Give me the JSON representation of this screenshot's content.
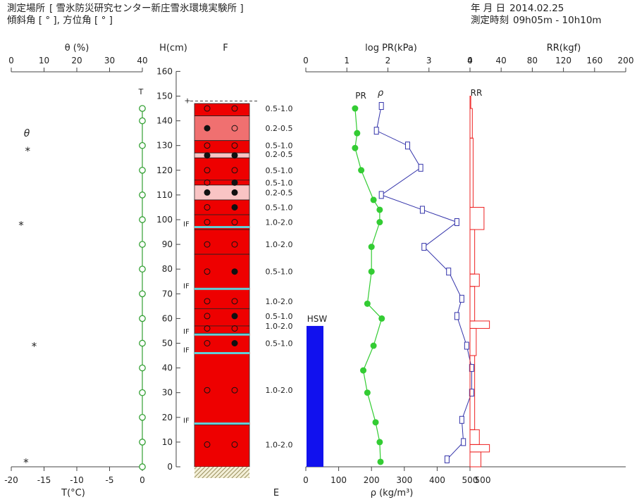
{
  "header": {
    "site_label": "測定場所",
    "site_value": "[ 雪氷防災研究センター新庄雪氷環境実験所 ]",
    "angle_label": "傾斜角 [ ° ], 方位角 [ ° ]",
    "date_label": "年 月 日",
    "date_value": "2014.02.25",
    "time_label": "測定時刻",
    "time_value": "09h05m - 10h10m"
  },
  "chart_data": [
    {
      "type": "scatter",
      "title": "θ (%) / T(°C)",
      "top_axis": {
        "label": "θ (%)",
        "ticks": [
          "0",
          "10",
          "20",
          "30",
          "40"
        ],
        "range": [
          0,
          40
        ]
      },
      "bottom_axis": {
        "label": "T(°C)",
        "ticks": [
          "-20",
          "-15",
          "-10",
          "-5",
          "0"
        ],
        "range": [
          -20,
          0
        ]
      },
      "theta_label": "θ",
      "theta_marker": "*",
      "theta_points": [
        {
          "h": 128,
          "theta": 5
        },
        {
          "h": 98,
          "theta": 3
        },
        {
          "h": 49,
          "theta": 7
        },
        {
          "h": 2,
          "theta": 4.5
        }
      ],
      "temp_label": "T",
      "temp_points": [
        {
          "h": 145,
          "t": 0
        },
        {
          "h": 140,
          "t": 0
        },
        {
          "h": 130,
          "t": 0
        },
        {
          "h": 120,
          "t": 0
        },
        {
          "h": 110,
          "t": 0
        },
        {
          "h": 100,
          "t": 0
        },
        {
          "h": 90,
          "t": 0
        },
        {
          "h": 80,
          "t": 0
        },
        {
          "h": 70,
          "t": 0
        },
        {
          "h": 60,
          "t": 0
        },
        {
          "h": 50,
          "t": 0
        },
        {
          "h": 40,
          "t": 0
        },
        {
          "h": 30,
          "t": 0
        },
        {
          "h": 20,
          "t": 0
        },
        {
          "h": 10,
          "t": 0
        },
        {
          "h": 0,
          "t": 0
        }
      ]
    },
    {
      "type": "table",
      "title": "H(cm) / F",
      "h_axis": {
        "label": "H(cm)",
        "ticks": [
          "0",
          "10",
          "20",
          "30",
          "40",
          "50",
          "60",
          "70",
          "80",
          "90",
          "100",
          "110",
          "120",
          "130",
          "140",
          "150",
          "160"
        ],
        "range": [
          0,
          160
        ]
      },
      "f_label": "F",
      "e_label": "E",
      "snow_surface_h": 148,
      "surface_mark": "+",
      "layers": [
        {
          "top": 147,
          "bottom": 142,
          "color": "#ee0000",
          "f": [
            "○",
            "○"
          ]
        },
        {
          "top": 142,
          "bottom": 132,
          "color": "#f07070",
          "f": [
            "●",
            "○"
          ]
        },
        {
          "top": 132,
          "bottom": 127,
          "color": "#ee0000",
          "f": [
            "○",
            "○"
          ]
        },
        {
          "top": 127,
          "bottom": 125,
          "color": "#f9c4c4",
          "f": [
            "●",
            "●"
          ]
        },
        {
          "top": 125,
          "bottom": 116,
          "color": "#ee0000",
          "f": [
            "○",
            "○"
          ]
        },
        {
          "top": 116,
          "bottom": 114,
          "color": "#ee0000",
          "f": [
            "○",
            "●"
          ]
        },
        {
          "top": 114,
          "bottom": 108,
          "color": "#f9c4c4",
          "f": [
            "●",
            "●"
          ]
        },
        {
          "top": 108,
          "bottom": 102,
          "color": "#ee0000",
          "f": [
            "○",
            "●"
          ]
        },
        {
          "top": 102,
          "bottom": 96,
          "color": "#ee0000",
          "f": [
            "○",
            "○"
          ]
        },
        {
          "top": 96,
          "bottom": 86,
          "color": "#ee0000",
          "f": [
            "○",
            "○"
          ]
        },
        {
          "top": 86,
          "bottom": 72,
          "color": "#ee0000",
          "f": [
            "○",
            "●"
          ]
        },
        {
          "top": 72,
          "bottom": 64,
          "color": "#ee0000",
          "f": [
            "○",
            "○"
          ]
        },
        {
          "top": 64,
          "bottom": 57,
          "color": "#ee0000",
          "f": [
            "○",
            "●"
          ]
        },
        {
          "top": 57,
          "bottom": 54,
          "color": "#ee0000",
          "f": [
            "○",
            "○"
          ]
        },
        {
          "top": 54,
          "bottom": 46,
          "color": "#ee0000",
          "f": [
            "○",
            "●"
          ]
        },
        {
          "top": 46,
          "bottom": 17,
          "color": "#ee0000",
          "f": [
            "○",
            "○"
          ]
        },
        {
          "top": 17,
          "bottom": 0,
          "color": "#ee0000",
          "f": [
            "○",
            "○"
          ]
        }
      ],
      "glyph_rows": [
        {
          "h": 145,
          "f": [
            "○",
            "○"
          ]
        },
        {
          "h": 137,
          "f": [
            "●",
            "○"
          ]
        },
        {
          "h": 130,
          "f": [
            "○",
            "○"
          ]
        },
        {
          "h": 126,
          "f": [
            "●",
            "●"
          ]
        },
        {
          "h": 120,
          "f": [
            "○",
            "○"
          ]
        },
        {
          "h": 115,
          "f": [
            "○",
            "●"
          ]
        },
        {
          "h": 111,
          "f": [
            "●",
            "●"
          ]
        },
        {
          "h": 105,
          "f": [
            "○",
            "●"
          ]
        },
        {
          "h": 99,
          "f": [
            "○",
            "○"
          ]
        },
        {
          "h": 90,
          "f": [
            "○",
            "○"
          ]
        },
        {
          "h": 79,
          "f": [
            "○",
            "●"
          ]
        },
        {
          "h": 67,
          "f": [
            "○",
            "○"
          ]
        },
        {
          "h": 61,
          "f": [
            "○",
            "●"
          ]
        },
        {
          "h": 56,
          "f": [
            "○",
            "○"
          ]
        },
        {
          "h": 50,
          "f": [
            "○",
            "●"
          ]
        },
        {
          "h": 31,
          "f": [
            "○",
            "○"
          ]
        },
        {
          "h": 9,
          "f": [
            "○",
            "○"
          ]
        }
      ],
      "ice_layers": [
        {
          "h": 97,
          "label": "IF"
        },
        {
          "h": 72,
          "label": "IF"
        },
        {
          "h": 53.5,
          "label": "IF"
        },
        {
          "h": 46,
          "label": "IF"
        },
        {
          "h": 17.5,
          "label": "IF"
        }
      ],
      "grain_sizes": [
        {
          "h": 145,
          "text": "0.5-1.0"
        },
        {
          "h": 137,
          "text": "0.2-0.5"
        },
        {
          "h": 130,
          "text": "0.5-1.0"
        },
        {
          "h": 126.5,
          "text": "0.2-0.5"
        },
        {
          "h": 120,
          "text": "0.5-1.0"
        },
        {
          "h": 115,
          "text": "0.5-1.0"
        },
        {
          "h": 111,
          "text": "0.2-0.5"
        },
        {
          "h": 105,
          "text": "0.5-1.0"
        },
        {
          "h": 99,
          "text": "1.0-2.0"
        },
        {
          "h": 90,
          "text": "1.0-2.0"
        },
        {
          "h": 79,
          "text": "0.5-1.0"
        },
        {
          "h": 67,
          "text": "1.0-2.0"
        },
        {
          "h": 61,
          "text": "0.5-1.0"
        },
        {
          "h": 57,
          "text": "1.0-2.0"
        },
        {
          "h": 50,
          "text": "0.5-1.0"
        },
        {
          "h": 31,
          "text": "1.0-2.0"
        },
        {
          "h": 9,
          "text": "1.0-2.0"
        }
      ]
    },
    {
      "type": "line",
      "title": "log PR(kPa) / ρ (kg/m³)",
      "top_axis": {
        "label": "log PR(kPa)",
        "ticks": [
          "0",
          "1",
          "2",
          "3",
          "4"
        ],
        "range": [
          0,
          4
        ]
      },
      "bottom_axis": {
        "label": "ρ (kg/m³)",
        "ticks": [
          "0",
          "100",
          "200",
          "300",
          "400",
          "500"
        ],
        "range": [
          0,
          500
        ]
      },
      "series": [
        {
          "name": "PR",
          "color": "#33cc33",
          "points": [
            {
              "h": 145,
              "log_pr": 1.2
            },
            {
              "h": 135,
              "log_pr": 1.25
            },
            {
              "h": 129,
              "log_pr": 1.2
            },
            {
              "h": 120,
              "log_pr": 1.35
            },
            {
              "h": 108,
              "log_pr": 1.65
            },
            {
              "h": 104,
              "log_pr": 1.8
            },
            {
              "h": 99,
              "log_pr": 1.8
            },
            {
              "h": 89,
              "log_pr": 1.6
            },
            {
              "h": 79,
              "log_pr": 1.6
            },
            {
              "h": 66,
              "log_pr": 1.5
            },
            {
              "h": 60,
              "log_pr": 1.85
            },
            {
              "h": 49,
              "log_pr": 1.65
            },
            {
              "h": 39,
              "log_pr": 1.4
            },
            {
              "h": 30,
              "log_pr": 1.5
            },
            {
              "h": 18,
              "log_pr": 1.7
            },
            {
              "h": 10,
              "log_pr": 1.8
            },
            {
              "h": 2,
              "log_pr": 1.82
            }
          ]
        },
        {
          "name": "ρ",
          "color": "#3333aa",
          "points": [
            {
              "h": 146,
              "rho": 230
            },
            {
              "h": 136,
              "rho": 215
            },
            {
              "h": 130,
              "rho": 310
            },
            {
              "h": 121,
              "rho": 350
            },
            {
              "h": 110,
              "rho": 230
            },
            {
              "h": 104,
              "rho": 355
            },
            {
              "h": 99,
              "rho": 460
            },
            {
              "h": 89,
              "rho": 360
            },
            {
              "h": 79,
              "rho": 435
            },
            {
              "h": 68,
              "rho": 475
            },
            {
              "h": 61,
              "rho": 460
            },
            {
              "h": 49,
              "rho": 490
            },
            {
              "h": 40,
              "rho": 505
            },
            {
              "h": 30,
              "rho": 505
            },
            {
              "h": 19,
              "rho": 475
            },
            {
              "h": 10,
              "rho": 480
            },
            {
              "h": 3,
              "rho": 430
            }
          ]
        }
      ],
      "series_labels": {
        "pr": "PR",
        "rho": "ρ"
      },
      "hsw": {
        "label": "HSW",
        "value": 50,
        "color": "#1111ee"
      }
    },
    {
      "type": "bar",
      "title": "RR(kgf)",
      "top_axis": {
        "label": "RR(kgf)",
        "ticks": [
          "0",
          "40",
          "80",
          "120",
          "160",
          "200"
        ],
        "range": [
          0,
          200
        ]
      },
      "label": "RR",
      "color": "#ee2222",
      "bottom_tick": "500",
      "steps": [
        {
          "top": 150,
          "bottom": 145,
          "rr": 1
        },
        {
          "top": 145,
          "bottom": 133,
          "rr": 3
        },
        {
          "top": 133,
          "bottom": 105,
          "rr": 4
        },
        {
          "top": 105,
          "bottom": 96,
          "rr": 18
        },
        {
          "top": 96,
          "bottom": 78,
          "rr": 6
        },
        {
          "top": 78,
          "bottom": 73,
          "rr": 12
        },
        {
          "top": 73,
          "bottom": 59,
          "rr": 6
        },
        {
          "top": 59,
          "bottom": 56,
          "rr": 25
        },
        {
          "top": 56,
          "bottom": 45,
          "rr": 8
        },
        {
          "top": 45,
          "bottom": 15,
          "rr": 6
        },
        {
          "top": 15,
          "bottom": 9,
          "rr": 12
        },
        {
          "top": 9,
          "bottom": 6,
          "rr": 25
        },
        {
          "top": 6,
          "bottom": 0,
          "rr": 14
        }
      ]
    }
  ]
}
